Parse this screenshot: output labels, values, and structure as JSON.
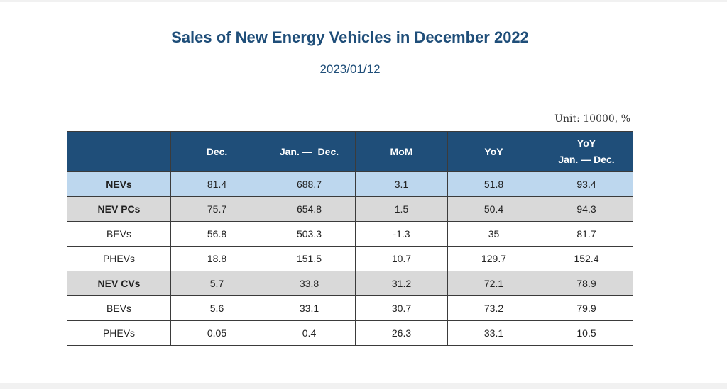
{
  "title": "Sales of New Energy Vehicles in December 2022",
  "date": "2023/01/12",
  "unit": "Unit: 10000, %",
  "table": {
    "headers": {
      "blank": "",
      "dec": "Dec.",
      "jan_dec": "Jan. —  Dec.",
      "mom": "MoM",
      "yoy": "YoY",
      "yoy_ytd_line1": "YoY",
      "yoy_ytd_line2": "Jan. — Dec."
    },
    "rows": [
      {
        "label": "NEVs",
        "level": "total",
        "values": [
          "81.4",
          "688.7",
          "3.1",
          "51.8",
          "93.4"
        ]
      },
      {
        "label": "NEV PCs",
        "level": "sub",
        "values": [
          "75.7",
          "654.8",
          "1.5",
          "50.4",
          "94.3"
        ]
      },
      {
        "label": "BEVs",
        "level": "item",
        "values": [
          "56.8",
          "503.3",
          "-1.3",
          "35",
          "81.7"
        ]
      },
      {
        "label": "PHEVs",
        "level": "item",
        "values": [
          "18.8",
          "151.5",
          "10.7",
          "129.7",
          "152.4"
        ]
      },
      {
        "label": "NEV CVs",
        "level": "sub",
        "values": [
          "5.7",
          "33.8",
          "31.2",
          "72.1",
          "78.9"
        ]
      },
      {
        "label": "BEVs",
        "level": "item",
        "values": [
          "5.6",
          "33.1",
          "30.7",
          "73.2",
          "79.9"
        ]
      },
      {
        "label": "PHEVs",
        "level": "item",
        "values": [
          "0.05",
          "0.4",
          "26.3",
          "33.1",
          "10.5"
        ]
      }
    ]
  },
  "colors": {
    "header_bg": "#1f4e79",
    "title_color": "#1f4e79",
    "total_row_bg": "#bdd7ee",
    "sub_row_bg": "#d9d9d9"
  }
}
